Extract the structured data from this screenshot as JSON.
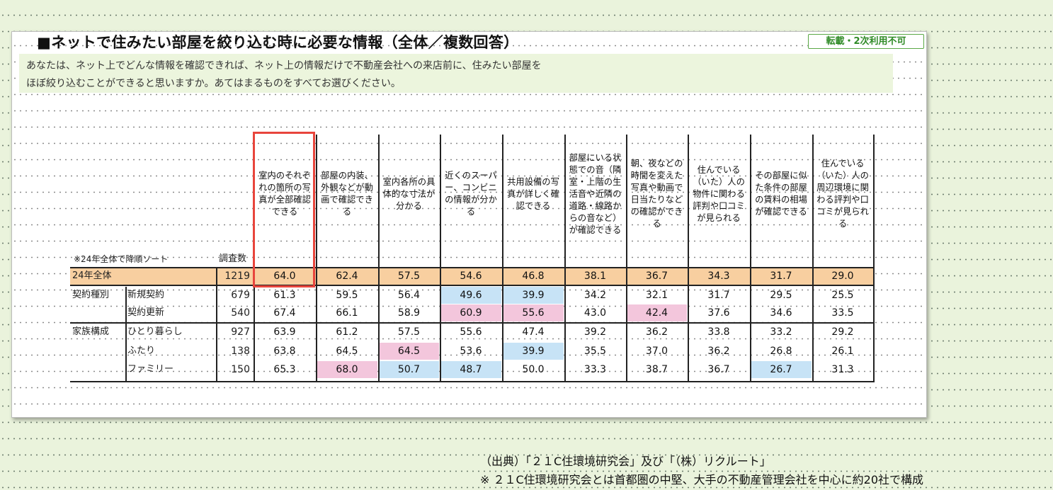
{
  "title": "■ネットで住みたい部屋を絞り込む時に必要な情報（全体／複数回答）",
  "badge": "転載・2次利用不可",
  "question": {
    "line1": "あなたは、ネット上でどんな情報を確認できれば、ネット上の情報だけで不動産会社への来店前に、住みたい部屋を",
    "line2": "ほぼ絞り込むことができると思いますか。あてはまるものをすべてお選びください。"
  },
  "sort_note": "※24年全体で降順ソート",
  "count_label": "調査数",
  "columns": [
    "室内のそれぞれの箇所の写真が全部確認できる",
    "部屋の内装、外観などが動画で確認できる",
    "室内各所の具体的な寸法が分かる",
    "近くのスーパー、コンビニの情報が分かる",
    "共用設備の写真が詳しく確認できる",
    "部屋にいる状態での音（隣室・上階の生活音や近隣の道路・線路からの音など）が確認できる",
    "朝、夜などの時間を変えた写真や動画で日当たりなどの確認ができる",
    "住んでいる（いた）人の物件に関わる評判や口コミが見られる",
    "その部屋に似た条件の部屋の賃料の相場が確認できる",
    "住んでいる（いた）人の周辺環境に関わる評判や口コミが見られる"
  ],
  "rows": [
    {
      "group": "",
      "label": "24年全体",
      "n": "1219",
      "values": [
        "64.0",
        "62.4",
        "57.5",
        "54.6",
        "46.8",
        "38.1",
        "36.7",
        "34.3",
        "31.7",
        "29.0"
      ]
    },
    {
      "group": "契約種別",
      "label": "新規契約",
      "n": "679",
      "values": [
        "61.3",
        "59.5",
        "56.4",
        "49.6",
        "39.9",
        "34.2",
        "32.1",
        "31.7",
        "29.5",
        "25.5"
      ]
    },
    {
      "group": "",
      "label": "契約更新",
      "n": "540",
      "values": [
        "67.4",
        "66.1",
        "58.9",
        "60.9",
        "55.6",
        "43.0",
        "42.4",
        "37.6",
        "34.6",
        "33.5"
      ]
    },
    {
      "group": "家族構成",
      "label": "ひとり暮らし",
      "n": "927",
      "values": [
        "63.9",
        "61.2",
        "57.5",
        "55.6",
        "47.4",
        "39.2",
        "36.2",
        "33.8",
        "33.2",
        "29.2"
      ]
    },
    {
      "group": "",
      "label": "ふたり",
      "n": "138",
      "values": [
        "63.8",
        "64.5",
        "64.5",
        "53.6",
        "39.9",
        "35.5",
        "37.0",
        "36.2",
        "26.8",
        "26.1"
      ]
    },
    {
      "group": "",
      "label": "ファミリー",
      "n": "150",
      "values": [
        "65.3",
        "68.0",
        "50.7",
        "48.7",
        "50.0",
        "33.3",
        "38.7",
        "36.7",
        "26.7",
        "31.3"
      ]
    }
  ],
  "highlights": {
    "pink": [
      [
        2,
        3
      ],
      [
        2,
        4
      ],
      [
        2,
        6
      ],
      [
        4,
        2
      ],
      [
        5,
        1
      ]
    ],
    "blue": [
      [
        1,
        3
      ],
      [
        1,
        4
      ],
      [
        4,
        4
      ],
      [
        5,
        2
      ],
      [
        5,
        3
      ],
      [
        5,
        8
      ]
    ]
  },
  "colors": {
    "total_row": "#f8cfa0",
    "pink": "#f3c6dc",
    "blue": "#c7e3f6",
    "red_frame": "#e8453c",
    "badge_green": "#5aa845"
  },
  "footer": {
    "source": "（出典）「２１C住環境研究会」及び「（株）リクルート」",
    "note": "※ ２１C住環境研究会とは首都圏の中堅、大手の不動産管理会社を中心に約20社で構成"
  }
}
